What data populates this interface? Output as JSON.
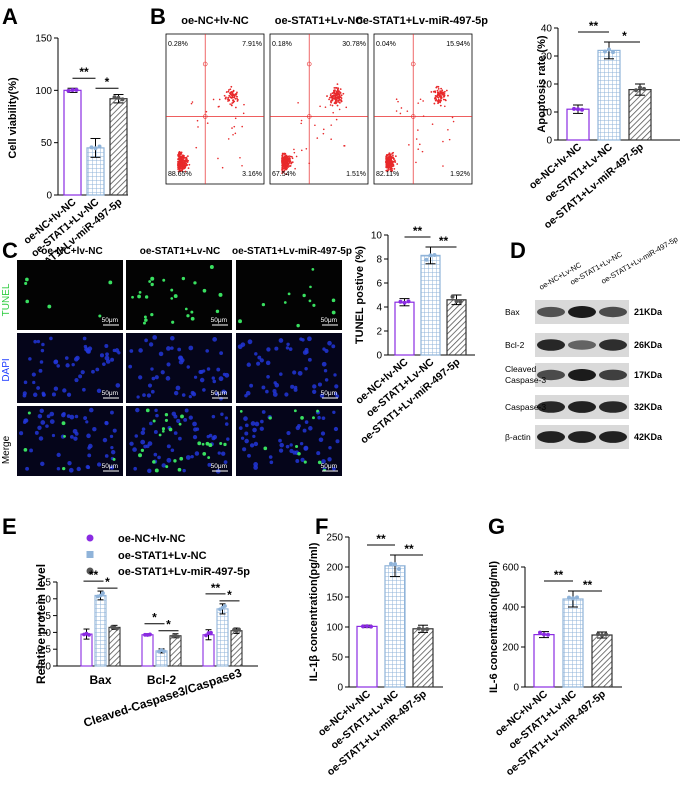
{
  "colors": {
    "nc": "#8a2be2",
    "stat1": "#8fb3d9",
    "mir": "#555555",
    "flow_dots": "#e8282a",
    "tunel_green": "#2ecc40",
    "dapi_blue": "#1f3cff"
  },
  "groups": [
    "oe-NC+lv-NC",
    "oe-STAT1+Lv-NC",
    "oe-STAT1+Lv-miR-497-5p"
  ],
  "panels": {
    "A": "A",
    "B": "B",
    "C": "C",
    "D": "D",
    "E": "E",
    "F": "F",
    "G": "G"
  },
  "flow": {
    "titles": [
      "oe-NC+lv-NC",
      "oe-STAT1+Lv-NC",
      "oe-STAT1+Lv-miR-497-5p"
    ],
    "quadrants": [
      {
        "ul": "0.28%",
        "ur": "7.91%",
        "ll": "88.65%",
        "lr": "3.16%"
      },
      {
        "ul": "0.18%",
        "ur": "30.78%",
        "ll": "67.54%",
        "lr": "1.51%"
      },
      {
        "ul": "0.04%",
        "ur": "15.94%",
        "ll": "82.11%",
        "lr": "1.92%"
      }
    ]
  },
  "micro": {
    "col_titles": [
      "oe-NC+lv-NC",
      "oe-STAT1+Lv-NC",
      "oe-STAT1+Lv-miR-497-5p"
    ],
    "row_labels": [
      "TUNEL",
      "DAPI",
      "Merge"
    ],
    "scale": "50μm"
  },
  "western": {
    "col_labels": [
      "oe-NC+Lv-NC",
      "oe-STAT1+Lv-NC",
      "oe-STAT1+Lv-miR-497-5p"
    ],
    "rows": [
      {
        "label": "Bax",
        "kda": "21KDa"
      },
      {
        "label": "Bcl-2",
        "kda": "26KDa"
      },
      {
        "label": "Cleaved Caspase-3",
        "kda": "17KDa"
      },
      {
        "label": "Caspase-3",
        "kda": "32KDa"
      },
      {
        "label": "β-actin",
        "kda": "42KDa"
      }
    ]
  },
  "legend_E": [
    "oe-NC+lv-NC",
    "oe-STAT1+Lv-NC",
    "oe-STAT1+Lv-miR-497-5p"
  ],
  "chart_data": [
    {
      "id": "A",
      "type": "bar",
      "ylabel": "Cell viability(%)",
      "ylim": [
        0,
        150
      ],
      "yticks": [
        0,
        50,
        100,
        150
      ],
      "categories": [
        "oe-NC+lv-NC",
        "oe-STAT1+Lv-NC",
        "oe-STAT1+Lv-miR-497-5p"
      ],
      "values": [
        100,
        45,
        92
      ],
      "errors": [
        2,
        9,
        4
      ],
      "significance": [
        {
          "from": 0,
          "to": 1,
          "label": "**"
        },
        {
          "from": 1,
          "to": 2,
          "label": "*"
        }
      ]
    },
    {
      "id": "B",
      "type": "bar",
      "ylabel": "Apoptosis rate (%)",
      "ylim": [
        0,
        40
      ],
      "yticks": [
        0,
        10,
        20,
        30,
        40
      ],
      "categories": [
        "oe-NC+lv-NC",
        "oe-STAT1+Lv-NC",
        "oe-STAT1+Lv-miR-497-5p"
      ],
      "values": [
        11,
        32,
        18
      ],
      "errors": [
        1.5,
        3,
        2
      ],
      "significance": [
        {
          "from": 0,
          "to": 1,
          "label": "**"
        },
        {
          "from": 1,
          "to": 2,
          "label": "*"
        }
      ]
    },
    {
      "id": "C",
      "type": "bar",
      "ylabel": "TUNEL postive (%)",
      "ylim": [
        0,
        10
      ],
      "yticks": [
        0,
        2,
        4,
        6,
        8,
        10
      ],
      "categories": [
        "oe-NC+lv-NC",
        "oe-STAT1+Lv-NC",
        "oe-STAT1+Lv-miR-497-5p"
      ],
      "values": [
        4.4,
        8.3,
        4.6
      ],
      "errors": [
        0.3,
        0.7,
        0.4
      ],
      "significance": [
        {
          "from": 0,
          "to": 1,
          "label": "**"
        },
        {
          "from": 1,
          "to": 2,
          "label": "**"
        }
      ]
    },
    {
      "id": "E",
      "type": "bar",
      "ylabel": "Relative protein level",
      "ylim": [
        0,
        2.5
      ],
      "yticks": [
        0.0,
        0.5,
        1.0,
        1.5,
        2.0,
        2.5
      ],
      "categories": [
        "Bax",
        "Bcl-2",
        "Cleaved-Caspase3/Caspase3"
      ],
      "series": [
        {
          "name": "oe-NC+lv-NC",
          "values": [
            0.95,
            0.93,
            0.93
          ],
          "errors": [
            0.15,
            0.03,
            0.15
          ]
        },
        {
          "name": "oe-STAT1+Lv-NC",
          "values": [
            2.1,
            0.45,
            1.7
          ],
          "errors": [
            0.13,
            0.06,
            0.15
          ]
        },
        {
          "name": "oe-STAT1+Lv-miR-497-5p",
          "values": [
            1.15,
            0.9,
            1.05
          ],
          "errors": [
            0.06,
            0.06,
            0.08
          ]
        }
      ],
      "significance": [
        {
          "cat": 0,
          "from": 0,
          "to": 1,
          "label": "**"
        },
        {
          "cat": 0,
          "from": 1,
          "to": 2,
          "label": "*"
        },
        {
          "cat": 1,
          "from": 0,
          "to": 1,
          "label": "*"
        },
        {
          "cat": 1,
          "from": 1,
          "to": 2,
          "label": "*"
        },
        {
          "cat": 2,
          "from": 0,
          "to": 1,
          "label": "**"
        },
        {
          "cat": 2,
          "from": 1,
          "to": 2,
          "label": "*"
        }
      ]
    },
    {
      "id": "F",
      "type": "bar",
      "ylabel": "IL-1β concentration(pg/ml)",
      "ylim": [
        0,
        250
      ],
      "yticks": [
        0,
        50,
        100,
        150,
        200,
        250
      ],
      "categories": [
        "oe-NC+lv-NC",
        "oe-STAT1+Lv-NC",
        "oe-STAT1+Lv-miR-497-5p"
      ],
      "values": [
        101,
        202,
        97
      ],
      "errors": [
        2,
        18,
        6
      ],
      "significance": [
        {
          "from": 0,
          "to": 1,
          "label": "**"
        },
        {
          "from": 1,
          "to": 2,
          "label": "**"
        }
      ]
    },
    {
      "id": "G",
      "type": "bar",
      "ylabel": "IL-6 concentration(pg/ml)",
      "ylim": [
        0,
        600
      ],
      "yticks": [
        0,
        200,
        400,
        600
      ],
      "categories": [
        "oe-NC+lv-NC",
        "oe-STAT1+Lv-NC",
        "oe-STAT1+Lv-miR-497-5p"
      ],
      "values": [
        262,
        440,
        260
      ],
      "errors": [
        15,
        40,
        15
      ],
      "significance": [
        {
          "from": 0,
          "to": 1,
          "label": "**"
        },
        {
          "from": 1,
          "to": 2,
          "label": "**"
        }
      ]
    }
  ]
}
